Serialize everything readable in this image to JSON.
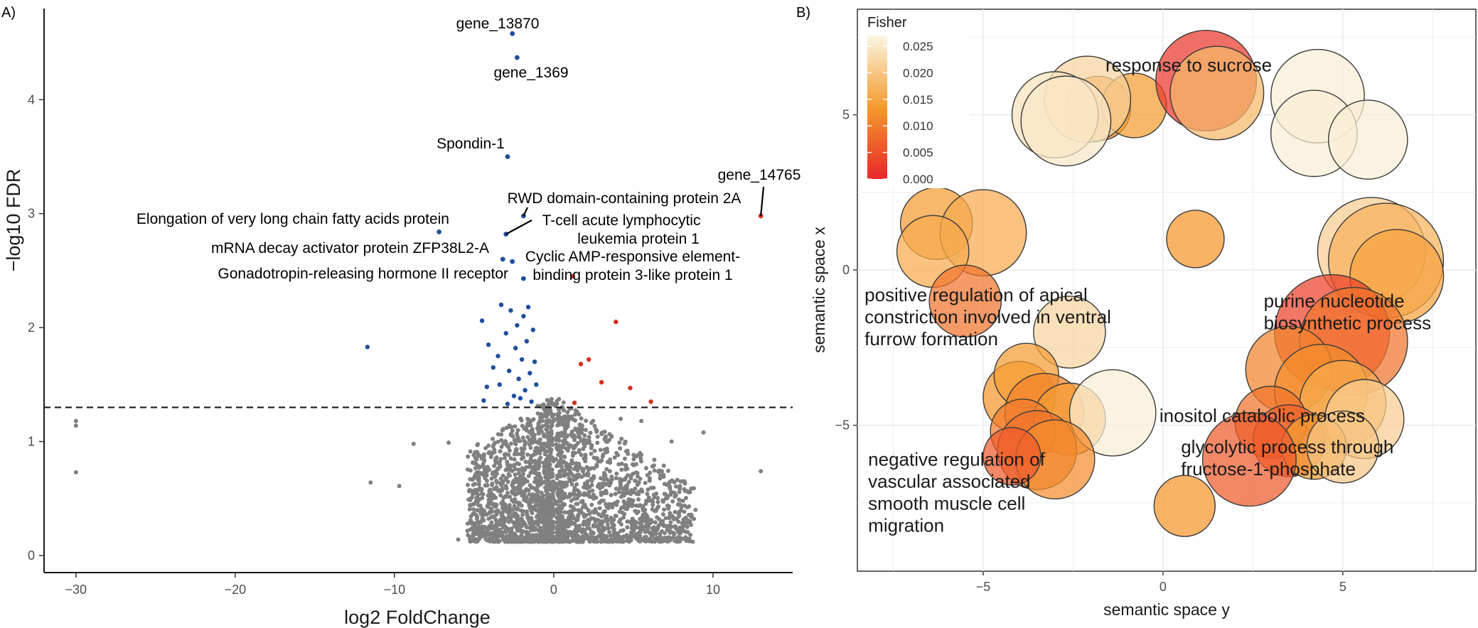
{
  "panels": {
    "a": {
      "tag": "A)",
      "xlabel": "log2 FoldChange",
      "ylabel": "−log10 FDR",
      "xticks": [
        -30,
        -20,
        -10,
        0,
        10
      ],
      "yticks": [
        0,
        1,
        2,
        3,
        4
      ]
    },
    "b": {
      "tag": "B)",
      "xlabel": "semantic space y",
      "ylabel": "semantic space x",
      "xticks": [
        -5,
        0,
        5
      ],
      "yticks": [
        -5,
        0,
        5
      ],
      "legend_title": "Fisher",
      "legend_ticks": [
        "0.025",
        "0.020",
        "0.015",
        "0.010",
        "0.005",
        "0.000"
      ]
    }
  },
  "chart_data": [
    {
      "type": "scatter",
      "subtype": "volcano",
      "xlabel": "log2 FoldChange",
      "ylabel": "−log10 FDR",
      "xlim": [
        -32,
        15
      ],
      "ylim": [
        -0.15,
        4.8
      ],
      "threshold_y": 1.3,
      "grid": false,
      "colors": {
        "down": "#1f4e9c",
        "up": "#d7301f",
        "ns": "#808080"
      },
      "labeled_points": [
        {
          "label": "gene_13870",
          "x": -2.6,
          "y": 4.58,
          "group": "down"
        },
        {
          "label": "gene_1369",
          "x": -2.3,
          "y": 4.37,
          "group": "down"
        },
        {
          "label": "Spondin-1",
          "x": -2.9,
          "y": 3.5,
          "group": "down"
        },
        {
          "label": "gene_14765",
          "x": 13.0,
          "y": 2.98,
          "group": "up"
        },
        {
          "label": "RWD domain-containing protein 2A",
          "x": -1.9,
          "y": 2.98,
          "group": "down"
        },
        {
          "label": "Elongation of very long chain fatty acids protein",
          "x": -7.2,
          "y": 2.84,
          "group": "down"
        },
        {
          "label": "T-cell acute lymphocytic leukemia protein 1",
          "x": -3.0,
          "y": 2.82,
          "group": "down"
        },
        {
          "label": "mRNA decay activator protein ZFP38L2-A",
          "x": -3.2,
          "y": 2.6,
          "group": "down"
        },
        {
          "label": "Cyclic AMP-responsive element-binding protein 3-like protein 1",
          "x": -2.6,
          "y": 2.58,
          "group": "down"
        },
        {
          "label": "Gonadotropin-releasing hormone II receptor",
          "x": -1.9,
          "y": 2.43,
          "group": "down"
        }
      ],
      "significant_points": [
        {
          "x": -11.7,
          "y": 1.83,
          "group": "down"
        },
        {
          "x": -4.5,
          "y": 2.06,
          "group": "down"
        },
        {
          "x": -4.1,
          "y": 1.85,
          "group": "down"
        },
        {
          "x": -4.2,
          "y": 1.48,
          "group": "down"
        },
        {
          "x": -4.4,
          "y": 1.36,
          "group": "down"
        },
        {
          "x": -3.3,
          "y": 2.2,
          "group": "down"
        },
        {
          "x": -3.5,
          "y": 1.75,
          "group": "down"
        },
        {
          "x": -3.4,
          "y": 1.5,
          "group": "down"
        },
        {
          "x": -3.0,
          "y": 1.95,
          "group": "down"
        },
        {
          "x": -2.8,
          "y": 1.62,
          "group": "down"
        },
        {
          "x": -2.7,
          "y": 2.15,
          "group": "down"
        },
        {
          "x": -2.5,
          "y": 1.4,
          "group": "down"
        },
        {
          "x": -2.4,
          "y": 1.82,
          "group": "down"
        },
        {
          "x": -2.3,
          "y": 2.02,
          "group": "down"
        },
        {
          "x": -2.2,
          "y": 1.55,
          "group": "down"
        },
        {
          "x": -2.0,
          "y": 1.72,
          "group": "down"
        },
        {
          "x": -1.9,
          "y": 2.1,
          "group": "down"
        },
        {
          "x": -1.8,
          "y": 1.45,
          "group": "down"
        },
        {
          "x": -1.7,
          "y": 1.88,
          "group": "down"
        },
        {
          "x": -1.6,
          "y": 2.18,
          "group": "down"
        },
        {
          "x": -1.5,
          "y": 1.6,
          "group": "down"
        },
        {
          "x": -1.4,
          "y": 1.35,
          "group": "down"
        },
        {
          "x": -1.3,
          "y": 1.98,
          "group": "down"
        },
        {
          "x": -1.2,
          "y": 1.7,
          "group": "down"
        },
        {
          "x": -1.1,
          "y": 1.5,
          "group": "down"
        },
        {
          "x": -2.9,
          "y": 1.33,
          "group": "down"
        },
        {
          "x": -3.8,
          "y": 1.65,
          "group": "down"
        },
        {
          "x": -2.1,
          "y": 1.38,
          "group": "down"
        },
        {
          "x": 1.2,
          "y": 2.45,
          "group": "up"
        },
        {
          "x": 3.9,
          "y": 2.05,
          "group": "up"
        },
        {
          "x": 1.7,
          "y": 1.68,
          "group": "up"
        },
        {
          "x": 2.2,
          "y": 1.72,
          "group": "up"
        },
        {
          "x": 3.0,
          "y": 1.52,
          "group": "up"
        },
        {
          "x": 4.8,
          "y": 1.47,
          "group": "up"
        },
        {
          "x": 6.1,
          "y": 1.35,
          "group": "up"
        },
        {
          "x": 1.3,
          "y": 1.34,
          "group": "up"
        }
      ],
      "nonsignificant_outliers": [
        {
          "x": -30.0,
          "y": 1.18
        },
        {
          "x": -30.0,
          "y": 1.14
        },
        {
          "x": -30.0,
          "y": 0.73
        },
        {
          "x": -11.5,
          "y": 0.64
        },
        {
          "x": -9.7,
          "y": 0.61
        },
        {
          "x": -8.8,
          "y": 0.98
        },
        {
          "x": -6.6,
          "y": 0.99
        },
        {
          "x": -6.0,
          "y": 0.14
        },
        {
          "x": -5.0,
          "y": 0.37
        },
        {
          "x": 9.4,
          "y": 1.08
        },
        {
          "x": 13.0,
          "y": 0.74
        },
        {
          "x": 4.2,
          "y": 1.2
        },
        {
          "x": 7.4,
          "y": 1.0
        },
        {
          "x": 5.5,
          "y": 1.18
        },
        {
          "x": 8.9,
          "y": 0.4
        }
      ],
      "nonsignificant_cloud": {
        "x_range": [
          -7.0,
          10.5
        ],
        "y_range": [
          0.1,
          1.3
        ],
        "description_points": 2600,
        "seed": 7
      }
    },
    {
      "type": "scatter",
      "subtype": "bubble",
      "xlabel": "semantic space y",
      "ylabel": "semantic space x",
      "xlim": [
        -8.5,
        8.7
      ],
      "ylim": [
        -9.7,
        8.4
      ],
      "grid": true,
      "color_scale": {
        "name": "Fisher",
        "range": [
          0.0,
          0.027
        ],
        "stops": [
          "#e8272b",
          "#f59a2c",
          "#faf6e4"
        ]
      },
      "bubbles": [
        {
          "x": -1.8,
          "y": 5.2,
          "r": 0.9,
          "fisher": 0.012
        },
        {
          "x": -0.8,
          "y": 5.3,
          "r": 0.9,
          "fisher": 0.014
        },
        {
          "x": -2.1,
          "y": 5.5,
          "r": 1.2,
          "fisher": 0.022
        },
        {
          "x": -3.0,
          "y": 5.0,
          "r": 1.2,
          "fisher": 0.024
        },
        {
          "x": -2.7,
          "y": 4.8,
          "r": 1.25,
          "fisher": 0.025
        },
        {
          "x": 1.2,
          "y": 6.1,
          "r": 1.4,
          "fisher": 0.002
        },
        {
          "x": 1.5,
          "y": 5.7,
          "r": 1.3,
          "fisher": 0.018
        },
        {
          "x": 4.3,
          "y": 5.6,
          "r": 1.3,
          "fisher": 0.026
        },
        {
          "x": 4.2,
          "y": 4.4,
          "r": 1.2,
          "fisher": 0.026
        },
        {
          "x": 5.7,
          "y": 4.2,
          "r": 1.1,
          "fisher": 0.026
        },
        {
          "x": -6.3,
          "y": 1.5,
          "r": 1.0,
          "fisher": 0.014
        },
        {
          "x": -5.0,
          "y": 1.2,
          "r": 1.2,
          "fisher": 0.016
        },
        {
          "x": -6.4,
          "y": 0.6,
          "r": 1.0,
          "fisher": 0.016
        },
        {
          "x": -5.5,
          "y": -1.0,
          "r": 1.0,
          "fisher": 0.009
        },
        {
          "x": 0.9,
          "y": 1.0,
          "r": 0.8,
          "fisher": 0.013
        },
        {
          "x": 5.8,
          "y": 0.6,
          "r": 1.5,
          "fisher": 0.021
        },
        {
          "x": 6.2,
          "y": 0.3,
          "r": 1.6,
          "fisher": 0.017
        },
        {
          "x": 6.5,
          "y": -0.2,
          "r": 1.3,
          "fisher": 0.015
        },
        {
          "x": -2.6,
          "y": -2.0,
          "r": 1.0,
          "fisher": 0.022
        },
        {
          "x": 4.7,
          "y": -2.0,
          "r": 1.6,
          "fisher": 0.003
        },
        {
          "x": 5.3,
          "y": -2.3,
          "r": 1.5,
          "fisher": 0.009
        },
        {
          "x": -4.0,
          "y": -4.1,
          "r": 1.0,
          "fisher": 0.013
        },
        {
          "x": -3.8,
          "y": -3.4,
          "r": 0.9,
          "fisher": 0.014
        },
        {
          "x": -3.3,
          "y": -4.6,
          "r": 1.1,
          "fisher": 0.011
        },
        {
          "x": -2.6,
          "y": -4.8,
          "r": 1.0,
          "fisher": 0.014
        },
        {
          "x": -1.4,
          "y": -4.6,
          "r": 1.2,
          "fisher": 0.026
        },
        {
          "x": -3.9,
          "y": -5.2,
          "r": 0.9,
          "fisher": 0.01
        },
        {
          "x": -3.5,
          "y": -5.8,
          "r": 1.1,
          "fisher": 0.009
        },
        {
          "x": -3.0,
          "y": -6.1,
          "r": 1.1,
          "fisher": 0.012
        },
        {
          "x": -4.2,
          "y": -6.0,
          "r": 0.8,
          "fisher": 0.006
        },
        {
          "x": 3.5,
          "y": -3.2,
          "r": 1.2,
          "fisher": 0.011
        },
        {
          "x": 4.4,
          "y": -3.9,
          "r": 1.3,
          "fisher": 0.012
        },
        {
          "x": 5.0,
          "y": -4.3,
          "r": 1.2,
          "fisher": 0.016
        },
        {
          "x": 5.6,
          "y": -4.8,
          "r": 1.1,
          "fisher": 0.021
        },
        {
          "x": 3.0,
          "y": -4.9,
          "r": 1.0,
          "fisher": 0.009
        },
        {
          "x": 3.5,
          "y": -5.5,
          "r": 1.0,
          "fisher": 0.007
        },
        {
          "x": 4.2,
          "y": -5.7,
          "r": 0.9,
          "fisher": 0.014
        },
        {
          "x": 5.0,
          "y": -5.7,
          "r": 1.0,
          "fisher": 0.02
        },
        {
          "x": 2.4,
          "y": -6.1,
          "r": 1.3,
          "fisher": 0.006
        },
        {
          "x": 0.6,
          "y": -7.6,
          "r": 0.85,
          "fisher": 0.013
        }
      ],
      "term_labels": [
        {
          "lines": [
            "response to sucrose"
          ],
          "x": -1.6,
          "y": 6.4
        },
        {
          "lines": [
            "positive regulation of apical",
            "constriction involved in ventral",
            "furrow formation"
          ],
          "x": -8.3,
          "y": -1.0
        },
        {
          "lines": [
            "purine nucleotide",
            "biosynthetic process"
          ],
          "x": 2.8,
          "y": -1.2
        },
        {
          "lines": [
            "inositol catabolic process"
          ],
          "x": -0.1,
          "y": -4.9
        },
        {
          "lines": [
            "glycolytic process through",
            "fructose-1-phosphate"
          ],
          "x": 0.5,
          "y": -5.9
        },
        {
          "lines": [
            "negative regulation of",
            "vascular associated",
            "smooth muscle cell",
            "migration"
          ],
          "x": -8.2,
          "y": -6.3
        }
      ]
    }
  ]
}
